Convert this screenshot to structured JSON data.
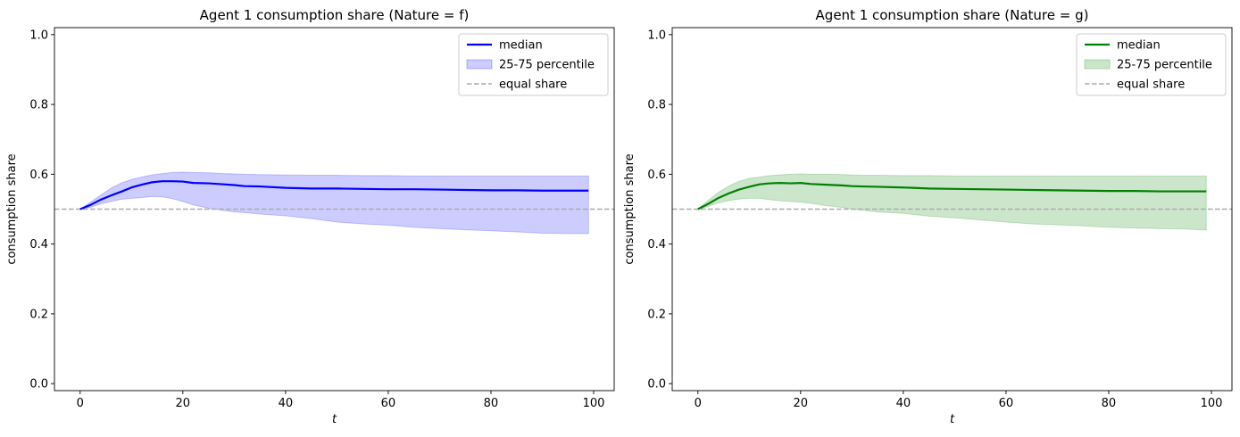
{
  "chart_data": [
    {
      "type": "line",
      "title": "Agent 1 consumption share (Nature = f)",
      "xlabel": "t",
      "ylabel": "consumption share",
      "xlim": [
        -5,
        104
      ],
      "ylim": [
        -0.02,
        1.02
      ],
      "xticks": [
        0,
        20,
        40,
        60,
        80,
        100
      ],
      "yticks": [
        0.0,
        0.2,
        0.4,
        0.6,
        0.8,
        1.0
      ],
      "grid": false,
      "legend_position": "upper right",
      "color": "#0000ff",
      "legend": [
        "median",
        "25-75 percentile",
        "equal share"
      ],
      "reference_line": {
        "name": "equal share",
        "y": 0.5,
        "color": "#aaaaaa"
      },
      "series": [
        {
          "name": "median",
          "x": [
            0,
            2,
            4,
            6,
            8,
            10,
            12,
            14,
            16,
            18,
            20,
            22,
            25,
            28,
            30,
            32,
            35,
            40,
            45,
            50,
            55,
            60,
            65,
            70,
            75,
            80,
            85,
            90,
            95,
            99
          ],
          "values": [
            0.5,
            0.512,
            0.527,
            0.539,
            0.55,
            0.562,
            0.57,
            0.577,
            0.58,
            0.58,
            0.579,
            0.575,
            0.574,
            0.571,
            0.569,
            0.566,
            0.565,
            0.561,
            0.559,
            0.559,
            0.558,
            0.557,
            0.557,
            0.556,
            0.555,
            0.554,
            0.554,
            0.553,
            0.553,
            0.553
          ]
        },
        {
          "name": "25-75 percentile",
          "x": [
            0,
            2,
            4,
            6,
            8,
            10,
            12,
            14,
            16,
            18,
            20,
            22,
            25,
            28,
            30,
            32,
            35,
            40,
            45,
            50,
            55,
            60,
            65,
            70,
            75,
            80,
            85,
            90,
            95,
            99
          ],
          "lower": [
            0.5,
            0.505,
            0.515,
            0.522,
            0.528,
            0.531,
            0.533,
            0.536,
            0.535,
            0.53,
            0.522,
            0.512,
            0.503,
            0.496,
            0.492,
            0.49,
            0.486,
            0.481,
            0.473,
            0.463,
            0.458,
            0.454,
            0.448,
            0.444,
            0.441,
            0.438,
            0.435,
            0.431,
            0.43,
            0.43
          ],
          "upper": [
            0.5,
            0.52,
            0.54,
            0.56,
            0.575,
            0.585,
            0.592,
            0.598,
            0.602,
            0.605,
            0.606,
            0.605,
            0.604,
            0.602,
            0.601,
            0.6,
            0.599,
            0.598,
            0.597,
            0.597,
            0.596,
            0.596,
            0.595,
            0.595,
            0.595,
            0.595,
            0.595,
            0.595,
            0.595,
            0.595
          ]
        }
      ]
    },
    {
      "type": "line",
      "title": "Agent 1 consumption share (Nature = g)",
      "xlabel": "t",
      "ylabel": "consumption share",
      "xlim": [
        -5,
        104
      ],
      "ylim": [
        -0.02,
        1.02
      ],
      "xticks": [
        0,
        20,
        40,
        60,
        80,
        100
      ],
      "yticks": [
        0.0,
        0.2,
        0.4,
        0.6,
        0.8,
        1.0
      ],
      "grid": false,
      "legend_position": "upper right",
      "color": "#008000",
      "legend": [
        "median",
        "25-75 percentile",
        "equal share"
      ],
      "reference_line": {
        "name": "equal share",
        "y": 0.5,
        "color": "#aaaaaa"
      },
      "series": [
        {
          "name": "median",
          "x": [
            0,
            2,
            4,
            6,
            8,
            10,
            12,
            14,
            16,
            18,
            20,
            22,
            25,
            28,
            30,
            32,
            35,
            40,
            45,
            50,
            55,
            60,
            65,
            70,
            75,
            80,
            85,
            90,
            95,
            99
          ],
          "values": [
            0.5,
            0.515,
            0.532,
            0.545,
            0.556,
            0.564,
            0.571,
            0.574,
            0.575,
            0.574,
            0.575,
            0.572,
            0.57,
            0.568,
            0.566,
            0.565,
            0.564,
            0.562,
            0.559,
            0.558,
            0.557,
            0.556,
            0.555,
            0.554,
            0.553,
            0.552,
            0.552,
            0.551,
            0.551,
            0.551
          ]
        },
        {
          "name": "25-75 percentile",
          "x": [
            0,
            2,
            4,
            6,
            8,
            10,
            12,
            14,
            16,
            18,
            20,
            22,
            25,
            28,
            30,
            32,
            35,
            40,
            45,
            50,
            55,
            60,
            65,
            70,
            75,
            80,
            85,
            90,
            95,
            99
          ],
          "lower": [
            0.5,
            0.508,
            0.518,
            0.524,
            0.529,
            0.531,
            0.531,
            0.527,
            0.524,
            0.522,
            0.52,
            0.517,
            0.51,
            0.505,
            0.5,
            0.497,
            0.492,
            0.488,
            0.48,
            0.475,
            0.469,
            0.463,
            0.458,
            0.455,
            0.452,
            0.448,
            0.446,
            0.444,
            0.443,
            0.44
          ],
          "upper": [
            0.5,
            0.525,
            0.548,
            0.566,
            0.58,
            0.588,
            0.592,
            0.596,
            0.598,
            0.6,
            0.601,
            0.6,
            0.6,
            0.599,
            0.598,
            0.597,
            0.597,
            0.596,
            0.596,
            0.595,
            0.595,
            0.595,
            0.595,
            0.595,
            0.595,
            0.595,
            0.595,
            0.595,
            0.595,
            0.595
          ]
        }
      ]
    }
  ]
}
